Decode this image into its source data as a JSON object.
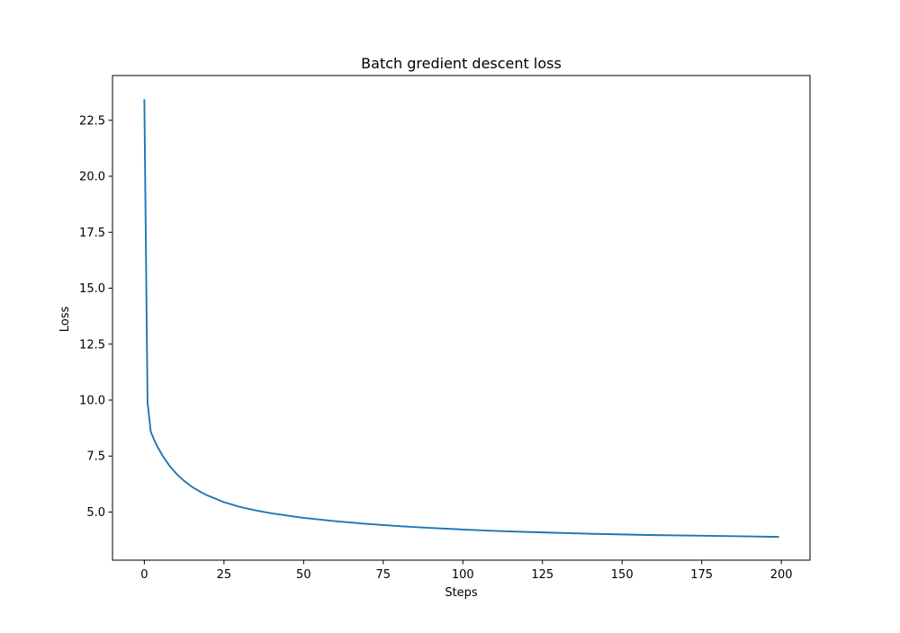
{
  "chart_data": {
    "type": "line",
    "title": "Batch gredient descent loss",
    "xlabel": "Steps",
    "ylabel": "Loss",
    "xlim": [
      -10,
      209
    ],
    "ylim": [
      2.85,
      24.5
    ],
    "xticks": [
      0,
      25,
      50,
      75,
      100,
      125,
      150,
      175,
      200
    ],
    "xtick_labels": [
      "0",
      "25",
      "50",
      "75",
      "100",
      "125",
      "150",
      "175",
      "200"
    ],
    "yticks": [
      5.0,
      7.5,
      10.0,
      12.5,
      15.0,
      17.5,
      20.0,
      22.5
    ],
    "ytick_labels": [
      "5.0",
      "7.5",
      "10.0",
      "12.5",
      "15.0",
      "17.5",
      "20.0",
      "22.5"
    ],
    "grid": false,
    "line_color": "#1f77b4",
    "series": [
      {
        "x": [
          0,
          1,
          2,
          3,
          4,
          5,
          6,
          8,
          10,
          12,
          15,
          18,
          20,
          25,
          30,
          35,
          40,
          50,
          60,
          70,
          75,
          80,
          90,
          100,
          110,
          120,
          125,
          130,
          140,
          150,
          160,
          170,
          175,
          180,
          190,
          199
        ],
        "values": [
          23.4,
          9.9,
          8.6,
          8.25,
          7.95,
          7.7,
          7.45,
          7.05,
          6.72,
          6.45,
          6.12,
          5.87,
          5.73,
          5.44,
          5.23,
          5.07,
          4.94,
          4.74,
          4.59,
          4.47,
          4.42,
          4.37,
          4.29,
          4.22,
          4.16,
          4.11,
          4.09,
          4.07,
          4.03,
          4.0,
          3.97,
          3.95,
          3.94,
          3.93,
          3.91,
          3.89
        ]
      }
    ]
  }
}
